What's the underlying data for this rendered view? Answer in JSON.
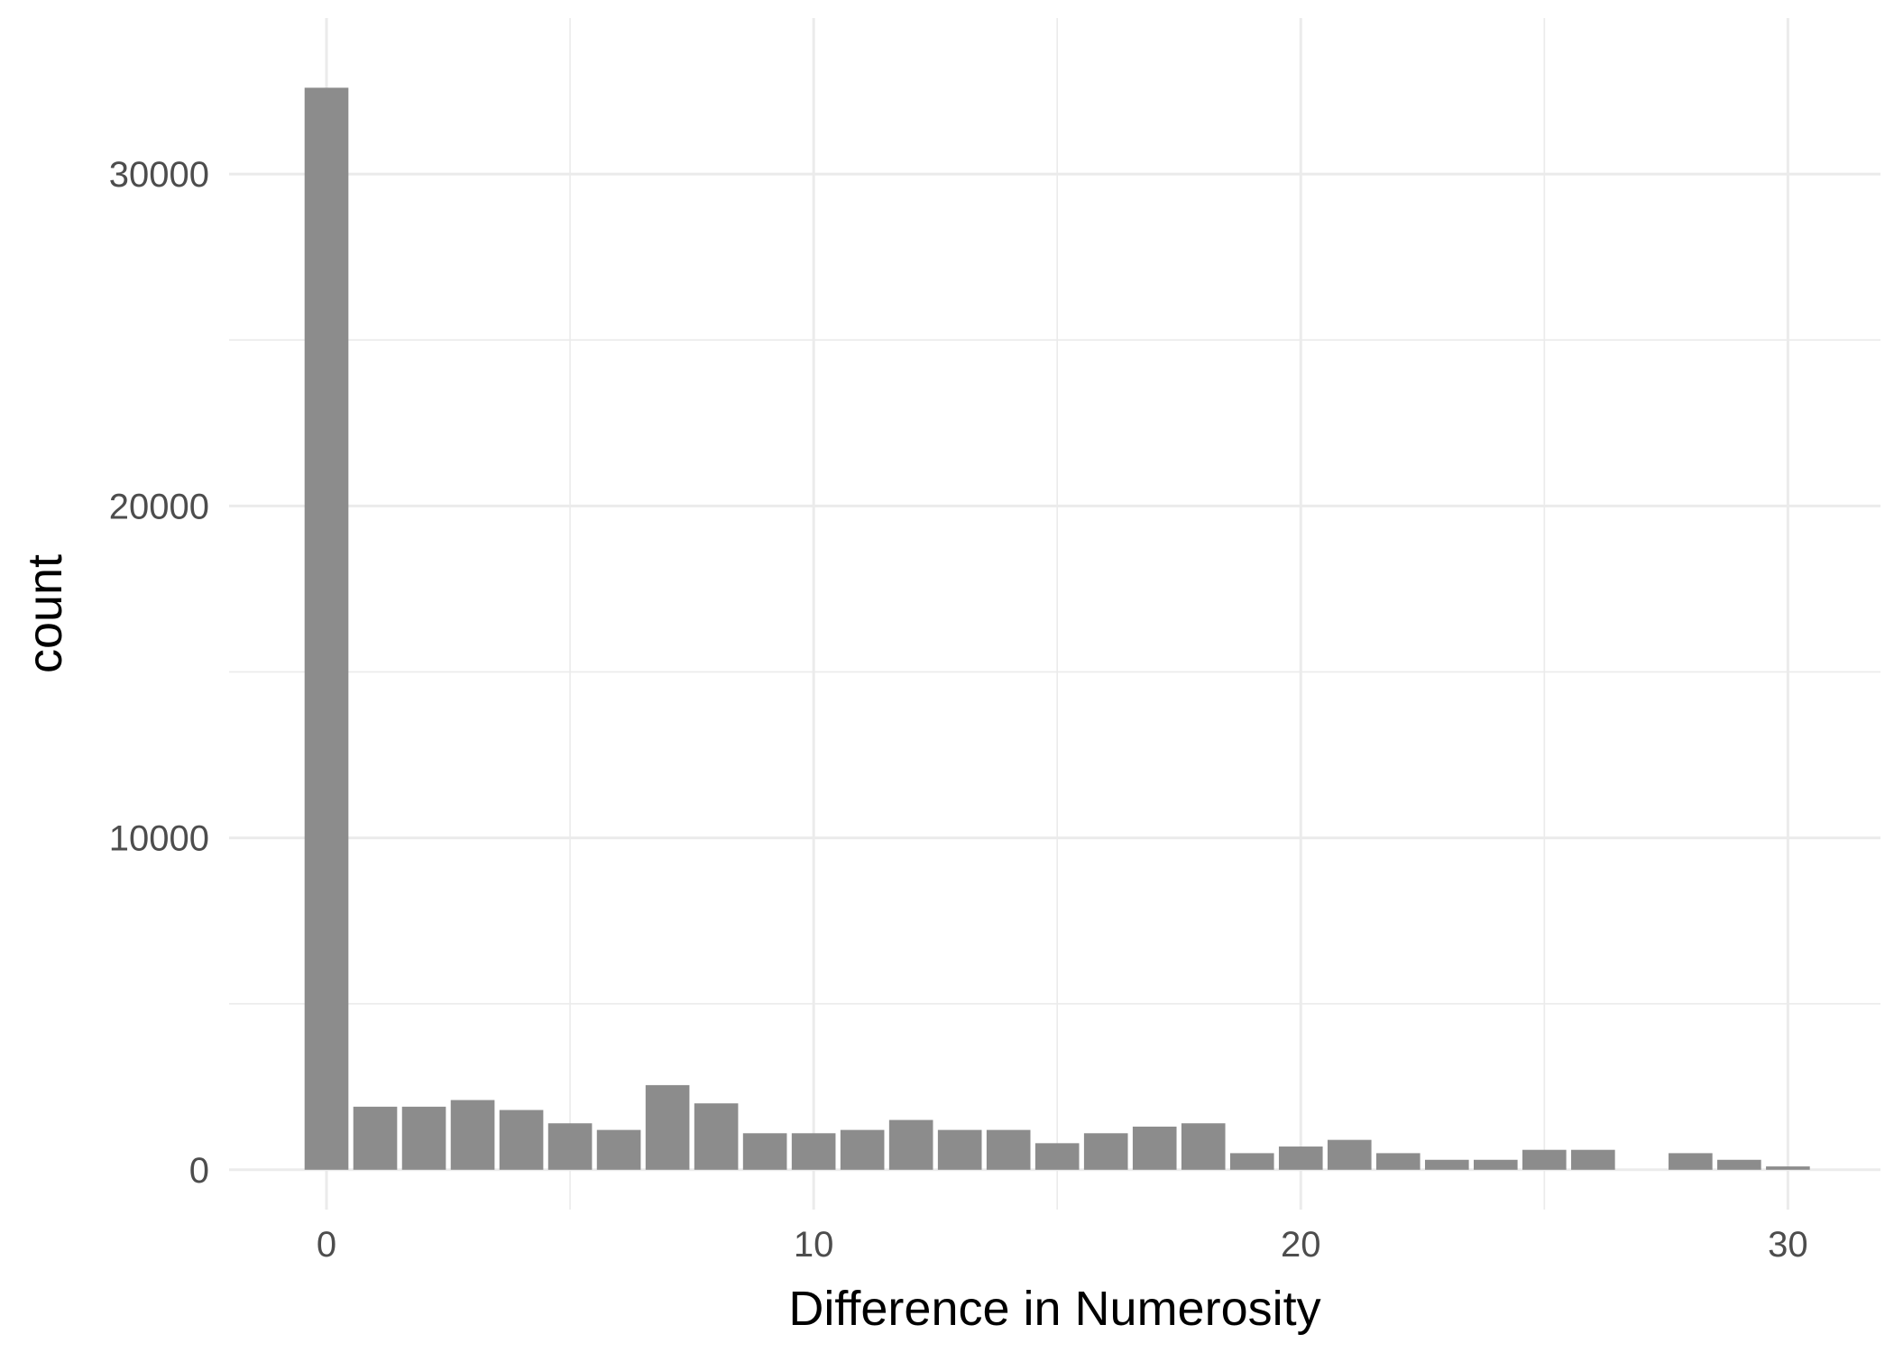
{
  "chart_data": {
    "type": "bar",
    "title": "",
    "xlabel": "Difference in Numerosity",
    "ylabel": "count",
    "x": [
      0,
      1,
      2,
      3,
      4,
      5,
      6,
      7,
      8,
      9,
      10,
      11,
      12,
      13,
      14,
      15,
      16,
      17,
      18,
      19,
      20,
      21,
      22,
      23,
      24,
      25,
      26,
      27,
      28,
      29,
      30
    ],
    "values": [
      32600,
      1900,
      1900,
      2100,
      1800,
      1400,
      1200,
      2550,
      2000,
      1100,
      1100,
      1200,
      1500,
      1200,
      1200,
      800,
      1100,
      1300,
      1400,
      500,
      700,
      900,
      500,
      300,
      300,
      600,
      600,
      0,
      500,
      300,
      100
    ],
    "xlim": [
      -2,
      31.9
    ],
    "ylim": [
      -1200,
      34700
    ],
    "x_ticks": [
      0,
      10,
      20,
      30
    ],
    "x_tick_labels": [
      "0",
      "10",
      "20",
      "30"
    ],
    "y_ticks": [
      0,
      10000,
      20000,
      30000
    ],
    "y_tick_labels": [
      "0",
      "10000",
      "20000",
      "30000"
    ],
    "grid": true,
    "legend": "none",
    "bar_color": "#8c8c8c",
    "grid_color": "#ebebeb"
  }
}
